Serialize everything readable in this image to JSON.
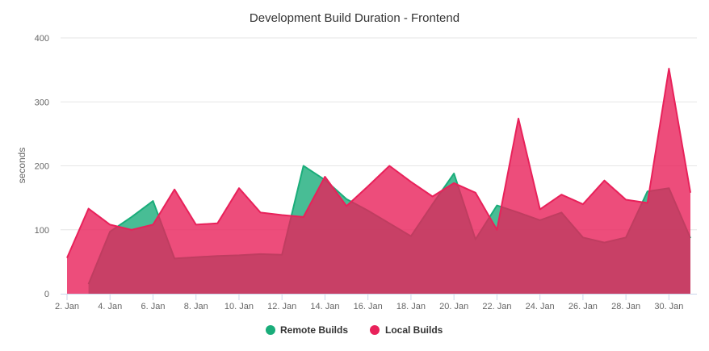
{
  "chart_data": {
    "type": "area",
    "title": "Development Build Duration - Frontend",
    "xlabel": "",
    "ylabel": "seconds",
    "ylim": [
      0,
      400
    ],
    "yticks": [
      0,
      100,
      200,
      300,
      400
    ],
    "xlim": [
      2,
      31
    ],
    "xtick_values": [
      2,
      4,
      6,
      8,
      10,
      12,
      14,
      16,
      18,
      20,
      22,
      24,
      26,
      28,
      30
    ],
    "xtick_labels": [
      "2. Jan",
      "4. Jan",
      "6. Jan",
      "8. Jan",
      "10. Jan",
      "12. Jan",
      "14. Jan",
      "16. Jan",
      "18. Jan",
      "20. Jan",
      "22. Jan",
      "24. Jan",
      "26. Jan",
      "28. Jan",
      "30. Jan"
    ],
    "grid": true,
    "legend_position": "bottom-center",
    "series": [
      {
        "name": "Remote Builds",
        "color": "#1aad7a",
        "points": [
          [
            3,
            15
          ],
          [
            4,
            97
          ],
          [
            5,
            120
          ],
          [
            6,
            145
          ],
          [
            7,
            55
          ],
          [
            8,
            57
          ],
          [
            9,
            59
          ],
          [
            10,
            60
          ],
          [
            11,
            62
          ],
          [
            12,
            61
          ],
          [
            13,
            200
          ],
          [
            14,
            178
          ],
          [
            15,
            148
          ],
          [
            16,
            130
          ],
          [
            17,
            110
          ],
          [
            18,
            90
          ],
          [
            19,
            140
          ],
          [
            20,
            188
          ],
          [
            21,
            85
          ],
          [
            22,
            138
          ],
          [
            23,
            127
          ],
          [
            24,
            115
          ],
          [
            25,
            127
          ],
          [
            26,
            88
          ],
          [
            27,
            80
          ],
          [
            28,
            88
          ],
          [
            29,
            160
          ],
          [
            30,
            165
          ],
          [
            31,
            87
          ]
        ]
      },
      {
        "name": "Local Builds",
        "color": "#e8215a",
        "points": [
          [
            2,
            56
          ],
          [
            3,
            133
          ],
          [
            4,
            108
          ],
          [
            5,
            100
          ],
          [
            6,
            108
          ],
          [
            7,
            163
          ],
          [
            8,
            108
          ],
          [
            9,
            110
          ],
          [
            10,
            165
          ],
          [
            11,
            127
          ],
          [
            12,
            123
          ],
          [
            13,
            120
          ],
          [
            14,
            183
          ],
          [
            15,
            137
          ],
          [
            16,
            168
          ],
          [
            17,
            200
          ],
          [
            18,
            175
          ],
          [
            19,
            152
          ],
          [
            20,
            173
          ],
          [
            21,
            158
          ],
          [
            22,
            100
          ],
          [
            23,
            274
          ],
          [
            24,
            132
          ],
          [
            25,
            155
          ],
          [
            26,
            140
          ],
          [
            27,
            177
          ],
          [
            28,
            147
          ],
          [
            29,
            142
          ],
          [
            30,
            352
          ],
          [
            31,
            158
          ]
        ]
      }
    ]
  }
}
